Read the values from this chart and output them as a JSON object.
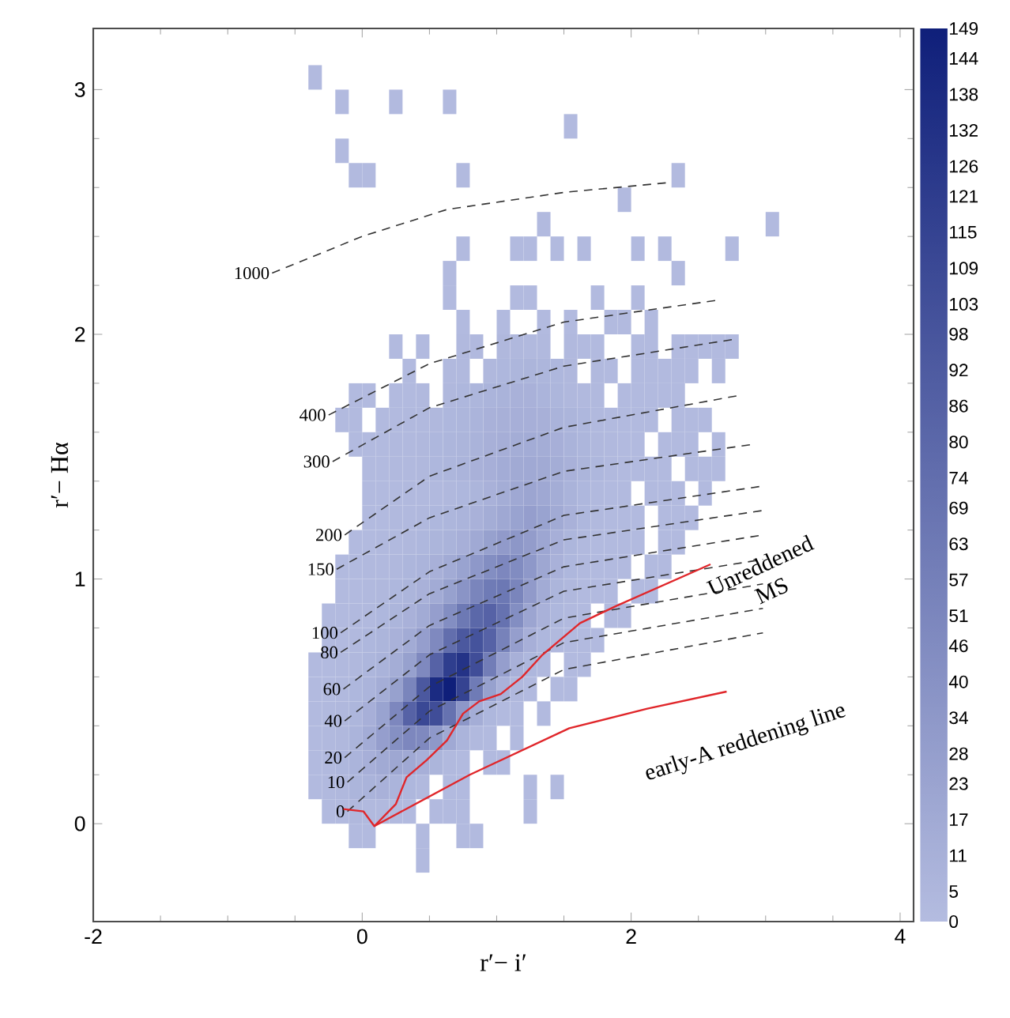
{
  "chart_data": {
    "type": "heatmap",
    "xlabel": "r′− i′",
    "ylabel": "r′− Hα",
    "xlim": [
      -2,
      4.1
    ],
    "ylim": [
      -0.4,
      3.25
    ],
    "xticks": [
      -2,
      0,
      2,
      4
    ],
    "yticks": [
      0,
      1,
      2,
      3
    ],
    "clim": [
      0,
      149
    ],
    "cticks": [
      0,
      5,
      11,
      17,
      23,
      28,
      34,
      40,
      46,
      51,
      57,
      63,
      69,
      74,
      80,
      86,
      92,
      98,
      103,
      109,
      115,
      121,
      126,
      132,
      138,
      144,
      149
    ],
    "x": [
      -0.35,
      -0.25,
      -0.15,
      -0.05,
      0.05,
      0.15,
      0.25,
      0.35,
      0.45,
      0.55,
      0.65,
      0.75,
      0.85,
      0.95,
      1.05,
      1.15,
      1.25,
      1.35,
      1.45,
      1.55,
      1.65,
      1.75,
      1.85,
      1.95,
      2.05,
      2.15,
      2.25,
      2.35,
      2.45,
      2.55,
      2.65,
      2.75,
      2.85,
      2.95,
      3.05,
      3.15,
      3.25
    ],
    "y": [
      3.05,
      2.95,
      2.85,
      2.75,
      2.65,
      2.55,
      2.45,
      2.35,
      2.25,
      2.15,
      2.05,
      1.95,
      1.85,
      1.75,
      1.65,
      1.55,
      1.45,
      1.35,
      1.25,
      1.15,
      1.05,
      0.95,
      0.85,
      0.75,
      0.65,
      0.55,
      0.45,
      0.35,
      0.25,
      0.15,
      0.05,
      -0.05,
      -0.15
    ],
    "cells": [
      [
        2,
        null,
        null,
        null,
        null,
        null,
        null,
        null,
        null,
        null,
        null,
        null,
        null,
        null,
        null,
        null,
        null,
        null,
        null,
        null,
        null,
        null,
        null,
        null,
        null,
        null,
        null,
        null,
        null,
        null,
        null,
        null,
        null,
        null,
        null,
        null,
        null
      ],
      [
        null,
        null,
        2,
        null,
        null,
        null,
        2,
        null,
        null,
        null,
        2,
        null,
        null,
        null,
        null,
        null,
        null,
        null,
        null,
        null,
        null,
        null,
        null,
        null,
        null,
        null,
        null,
        null,
        null,
        null,
        null,
        null,
        null,
        null,
        null,
        null,
        null
      ],
      [
        null,
        null,
        null,
        null,
        null,
        null,
        null,
        null,
        null,
        null,
        null,
        null,
        null,
        null,
        null,
        null,
        null,
        null,
        null,
        2,
        null,
        null,
        null,
        null,
        null,
        null,
        null,
        null,
        null,
        null,
        null,
        null,
        null,
        null,
        null,
        null,
        null
      ],
      [
        null,
        null,
        2,
        null,
        null,
        null,
        null,
        null,
        null,
        null,
        null,
        null,
        null,
        null,
        null,
        null,
        null,
        null,
        null,
        null,
        null,
        null,
        null,
        null,
        null,
        null,
        null,
        null,
        null,
        null,
        null,
        null,
        null,
        null,
        null,
        null,
        null
      ],
      [
        null,
        null,
        null,
        2,
        2,
        null,
        null,
        null,
        null,
        null,
        null,
        2,
        null,
        null,
        null,
        null,
        null,
        null,
        null,
        null,
        null,
        null,
        null,
        null,
        null,
        null,
        null,
        2,
        null,
        null,
        null,
        null,
        null,
        null,
        null,
        null,
        null
      ],
      [
        null,
        null,
        null,
        null,
        null,
        null,
        null,
        null,
        null,
        null,
        null,
        null,
        null,
        null,
        null,
        null,
        null,
        null,
        null,
        null,
        null,
        null,
        null,
        2,
        null,
        null,
        null,
        null,
        null,
        null,
        null,
        null,
        null,
        null,
        null,
        null,
        null
      ],
      [
        null,
        null,
        null,
        null,
        null,
        null,
        null,
        null,
        null,
        null,
        null,
        null,
        null,
        null,
        null,
        null,
        null,
        2,
        null,
        null,
        null,
        null,
        null,
        null,
        null,
        null,
        null,
        null,
        null,
        null,
        null,
        null,
        null,
        null,
        2,
        null,
        null
      ],
      [
        null,
        null,
        null,
        null,
        null,
        null,
        null,
        null,
        null,
        null,
        null,
        2,
        null,
        null,
        null,
        2,
        2,
        null,
        2,
        null,
        2,
        null,
        null,
        null,
        2,
        null,
        2,
        null,
        null,
        null,
        null,
        2,
        null,
        null,
        null,
        null,
        null
      ],
      [
        null,
        null,
        null,
        null,
        null,
        null,
        null,
        null,
        null,
        null,
        2,
        null,
        null,
        null,
        null,
        null,
        null,
        null,
        null,
        null,
        null,
        null,
        null,
        null,
        null,
        null,
        null,
        2,
        null,
        null,
        null,
        null,
        null,
        null,
        null,
        null,
        null
      ],
      [
        null,
        null,
        null,
        null,
        null,
        null,
        null,
        null,
        null,
        null,
        2,
        null,
        null,
        null,
        null,
        2,
        2,
        null,
        null,
        null,
        null,
        2,
        null,
        null,
        2,
        null,
        null,
        null,
        null,
        null,
        null,
        null,
        null,
        null,
        null,
        null,
        null
      ],
      [
        null,
        null,
        null,
        null,
        null,
        null,
        null,
        null,
        null,
        null,
        null,
        2,
        null,
        null,
        2,
        null,
        null,
        2,
        null,
        2,
        null,
        null,
        2,
        2,
        null,
        2,
        null,
        null,
        null,
        null,
        null,
        null,
        null,
        null,
        null,
        null,
        null
      ],
      [
        null,
        null,
        null,
        null,
        null,
        null,
        2,
        null,
        2,
        null,
        null,
        3,
        3,
        null,
        4,
        4,
        3,
        3,
        null,
        3,
        2,
        2,
        null,
        null,
        2,
        2,
        null,
        2,
        2,
        2,
        2,
        2,
        null,
        null,
        null,
        null,
        null
      ],
      [
        null,
        null,
        null,
        null,
        null,
        null,
        null,
        2,
        null,
        null,
        3,
        3,
        null,
        4,
        5,
        6,
        7,
        6,
        5,
        4,
        null,
        3,
        2,
        null,
        2,
        2,
        2,
        2,
        2,
        null,
        2,
        null,
        null,
        null,
        null,
        null,
        null
      ],
      [
        null,
        null,
        null,
        2,
        2,
        null,
        2,
        2,
        3,
        null,
        4,
        5,
        6,
        8,
        9,
        10,
        10,
        8,
        6,
        4,
        3,
        3,
        null,
        2,
        2,
        2,
        2,
        2,
        null,
        null,
        null,
        null,
        null,
        null,
        null,
        null,
        null
      ],
      [
        null,
        null,
        2,
        2,
        null,
        2,
        2,
        3,
        3,
        4,
        5,
        6,
        8,
        10,
        11,
        12,
        12,
        11,
        9,
        7,
        5,
        3,
        2,
        2,
        2,
        2,
        null,
        2,
        2,
        2,
        null,
        null,
        null,
        null,
        null,
        null,
        null
      ],
      [
        null,
        null,
        null,
        2,
        2,
        2,
        3,
        3,
        4,
        5,
        6,
        7,
        9,
        11,
        13,
        14,
        15,
        14,
        12,
        9,
        6,
        4,
        3,
        2,
        2,
        null,
        2,
        2,
        2,
        null,
        2,
        null,
        null,
        null,
        null,
        null,
        null
      ],
      [
        null,
        null,
        null,
        null,
        2,
        2,
        3,
        3,
        4,
        5,
        6,
        8,
        10,
        12,
        15,
        17,
        18,
        17,
        14,
        10,
        7,
        5,
        3,
        2,
        2,
        2,
        2,
        null,
        2,
        2,
        2,
        null,
        null,
        null,
        null,
        null,
        null
      ],
      [
        null,
        null,
        null,
        null,
        2,
        2,
        2,
        3,
        3,
        3,
        4,
        5,
        7,
        10,
        14,
        19,
        22,
        19,
        14,
        9,
        5,
        3,
        2,
        2,
        null,
        2,
        2,
        2,
        null,
        2,
        null,
        null,
        null,
        null,
        null,
        null,
        null
      ],
      [
        null,
        null,
        null,
        null,
        2,
        2,
        3,
        3,
        4,
        5,
        6,
        8,
        10,
        14,
        19,
        24,
        28,
        24,
        17,
        10,
        5,
        3,
        2,
        2,
        2,
        null,
        2,
        2,
        2,
        null,
        null,
        null,
        null,
        null,
        null,
        null,
        null
      ],
      [
        null,
        null,
        null,
        2,
        2,
        3,
        3,
        4,
        5,
        7,
        9,
        12,
        18,
        26,
        32,
        35,
        30,
        21,
        12,
        6,
        3,
        2,
        2,
        2,
        2,
        null,
        2,
        2,
        null,
        null,
        null,
        null,
        null,
        null,
        null,
        null,
        null
      ],
      [
        null,
        null,
        2,
        2,
        3,
        3,
        4,
        6,
        8,
        11,
        16,
        24,
        34,
        44,
        50,
        46,
        34,
        20,
        10,
        5,
        3,
        2,
        2,
        2,
        null,
        2,
        2,
        null,
        null,
        null,
        null,
        null,
        null,
        null,
        null,
        null,
        null
      ],
      [
        null,
        null,
        2,
        2,
        3,
        4,
        5,
        7,
        10,
        16,
        26,
        38,
        52,
        62,
        65,
        52,
        32,
        16,
        7,
        4,
        2,
        2,
        2,
        null,
        2,
        2,
        null,
        null,
        null,
        null,
        null,
        null,
        null,
        null,
        null,
        null,
        null
      ],
      [
        null,
        2,
        2,
        3,
        3,
        5,
        7,
        10,
        16,
        28,
        44,
        64,
        80,
        85,
        70,
        44,
        22,
        10,
        5,
        3,
        2,
        null,
        2,
        2,
        null,
        null,
        null,
        null,
        null,
        null,
        null,
        null,
        null,
        null,
        null,
        null,
        null
      ],
      [
        null,
        2,
        2,
        3,
        5,
        7,
        10,
        16,
        28,
        48,
        74,
        95,
        100,
        85,
        55,
        28,
        12,
        5,
        3,
        2,
        2,
        2,
        null,
        null,
        null,
        null,
        null,
        null,
        null,
        null,
        null,
        null,
        null,
        null,
        null,
        null,
        null
      ],
      [
        2,
        2,
        3,
        4,
        6,
        9,
        14,
        26,
        48,
        85,
        120,
        130,
        105,
        60,
        28,
        11,
        5,
        3,
        null,
        2,
        2,
        null,
        null,
        null,
        null,
        null,
        null,
        null,
        null,
        null,
        null,
        null,
        null,
        null,
        null,
        null,
        null
      ],
      [
        2,
        2,
        3,
        5,
        8,
        14,
        26,
        52,
        95,
        138,
        149,
        115,
        62,
        26,
        10,
        4,
        2,
        null,
        2,
        2,
        null,
        null,
        null,
        null,
        null,
        null,
        null,
        null,
        null,
        null,
        null,
        null,
        null,
        null,
        null,
        null,
        null
      ],
      [
        2,
        3,
        4,
        6,
        12,
        24,
        50,
        85,
        110,
        105,
        70,
        35,
        14,
        5,
        2,
        2,
        null,
        2,
        null,
        null,
        null,
        null,
        null,
        null,
        null,
        null,
        null,
        null,
        null,
        null,
        null,
        null,
        null,
        null,
        null,
        null,
        null
      ],
      [
        2,
        3,
        4,
        8,
        15,
        28,
        42,
        50,
        48,
        34,
        18,
        8,
        3,
        2,
        null,
        2,
        null,
        null,
        null,
        null,
        null,
        null,
        null,
        null,
        null,
        null,
        null,
        null,
        null,
        null,
        null,
        null,
        null,
        null,
        null,
        null,
        null
      ],
      [
        2,
        3,
        5,
        8,
        12,
        17,
        20,
        18,
        12,
        7,
        3,
        2,
        null,
        2,
        2,
        null,
        null,
        null,
        null,
        null,
        null,
        null,
        null,
        null,
        null,
        null,
        null,
        null,
        null,
        null,
        null,
        null,
        null,
        null,
        null,
        null,
        null
      ],
      [
        2,
        3,
        4,
        7,
        9,
        10,
        8,
        5,
        3,
        null,
        2,
        2,
        null,
        null,
        null,
        null,
        2,
        null,
        2,
        null,
        null,
        null,
        null,
        null,
        null,
        null,
        null,
        null,
        null,
        null,
        null,
        null,
        null,
        null,
        null,
        null,
        null
      ],
      [
        null,
        2,
        2,
        4,
        3,
        3,
        2,
        2,
        null,
        2,
        2,
        2,
        null,
        null,
        null,
        null,
        2,
        null,
        null,
        null,
        null,
        null,
        null,
        null,
        null,
        null,
        null,
        null,
        null,
        null,
        null,
        null,
        null,
        null,
        null,
        null,
        null
      ],
      [
        null,
        null,
        null,
        2,
        2,
        null,
        null,
        null,
        2,
        null,
        null,
        2,
        2,
        null,
        null,
        null,
        null,
        null,
        null,
        null,
        null,
        null,
        null,
        null,
        null,
        null,
        null,
        null,
        null,
        null,
        null,
        null,
        null,
        null,
        null,
        null,
        null
      ],
      [
        null,
        null,
        null,
        null,
        null,
        null,
        null,
        null,
        2,
        null,
        null,
        null,
        null,
        null,
        null,
        null,
        null,
        null,
        null,
        null,
        null,
        null,
        null,
        null,
        null,
        null,
        null,
        null,
        null,
        null,
        null,
        null,
        null,
        null,
        null,
        null,
        null
      ]
    ],
    "series": [
      {
        "type": "line",
        "name": "1000",
        "color": "#333333",
        "line_style": "dashed",
        "x": [
          -0.67,
          0.0,
          0.63,
          1.5,
          2.28
        ],
        "values": [
          2.25,
          2.4,
          2.51,
          2.58,
          2.62
        ]
      },
      {
        "type": "line",
        "name": "400",
        "color": "#333333",
        "line_style": "dashed",
        "x": [
          -0.25,
          0.5,
          1.5,
          2.65
        ],
        "values": [
          1.67,
          1.88,
          2.05,
          2.14
        ]
      },
      {
        "type": "line",
        "name": "300",
        "color": "#333333",
        "line_style": "dashed",
        "x": [
          -0.22,
          0.5,
          1.5,
          2.77
        ],
        "values": [
          1.48,
          1.7,
          1.87,
          1.98
        ]
      },
      {
        "type": "line",
        "name": "200",
        "color": "#333333",
        "line_style": "dashed",
        "x": [
          -0.13,
          0.5,
          1.5,
          2.8
        ],
        "values": [
          1.18,
          1.42,
          1.62,
          1.75
        ]
      },
      {
        "type": "line",
        "name": "150",
        "color": "#333333",
        "line_style": "dashed",
        "x": [
          -0.19,
          0.5,
          1.5,
          2.9
        ],
        "values": [
          1.04,
          1.25,
          1.44,
          1.55
        ]
      },
      {
        "type": "line",
        "name": "100",
        "color": "#333333",
        "line_style": "dashed",
        "x": [
          -0.16,
          0.5,
          1.5,
          2.98
        ],
        "values": [
          0.78,
          1.03,
          1.26,
          1.38
        ]
      },
      {
        "type": "line",
        "name": "80",
        "color": "#333333",
        "line_style": "dashed",
        "x": [
          -0.16,
          0.5,
          1.5,
          2.98
        ],
        "values": [
          0.7,
          0.94,
          1.16,
          1.28
        ]
      },
      {
        "type": "line",
        "name": "60",
        "color": "#333333",
        "line_style": "dashed",
        "x": [
          -0.14,
          0.5,
          1.5,
          2.98
        ],
        "values": [
          0.55,
          0.81,
          1.05,
          1.18
        ]
      },
      {
        "type": "line",
        "name": "40",
        "color": "#333333",
        "line_style": "dashed",
        "x": [
          -0.13,
          0.5,
          1.5,
          2.98
        ],
        "values": [
          0.42,
          0.69,
          0.95,
          1.08
        ]
      },
      {
        "type": "line",
        "name": "20",
        "color": "#333333",
        "line_style": "dashed",
        "x": [
          -0.13,
          0.5,
          1.5,
          2.98
        ],
        "values": [
          0.27,
          0.56,
          0.84,
          0.98
        ]
      },
      {
        "type": "line",
        "name": "10",
        "color": "#333333",
        "line_style": "dashed",
        "x": [
          -0.11,
          0.5,
          1.5,
          2.98
        ],
        "values": [
          0.17,
          0.46,
          0.74,
          0.88
        ]
      },
      {
        "type": "line",
        "name": "0",
        "color": "#333333",
        "line_style": "dashed",
        "x": [
          -0.11,
          0.5,
          1.5,
          2.98
        ],
        "values": [
          0.05,
          0.35,
          0.63,
          0.78
        ]
      },
      {
        "type": "line",
        "color": "#e0262a",
        "line_style": "solid",
        "x": [
          -0.14,
          0.01,
          0.09,
          0.25,
          0.33,
          0.48,
          0.63,
          0.75,
          0.87,
          1.03,
          1.19,
          1.34,
          1.62,
          1.89,
          2.59
        ],
        "values": [
          0.06,
          0.05,
          -0.01,
          0.08,
          0.19,
          0.26,
          0.34,
          0.45,
          0.5,
          0.53,
          0.6,
          0.69,
          0.82,
          0.89,
          1.06
        ]
      },
      {
        "type": "line",
        "color": "#e0262a",
        "line_style": "solid",
        "x": [
          0.09,
          0.8,
          1.54,
          2.12,
          2.71
        ],
        "values": [
          -0.01,
          0.2,
          0.39,
          0.47,
          0.54
        ]
      }
    ],
    "annotations": [
      "Unreddened MS",
      "early-A reddening line"
    ]
  }
}
